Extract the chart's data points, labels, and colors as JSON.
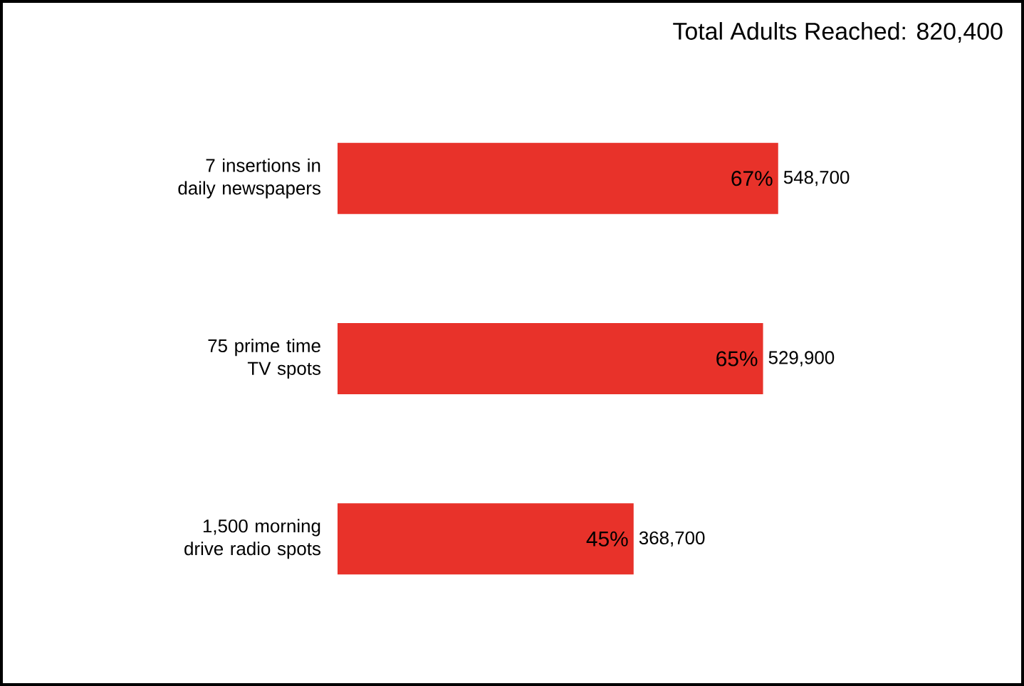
{
  "chart_data": {
    "type": "bar",
    "orientation": "horizontal",
    "title": "Total Adults Reached: 820,400",
    "categories": [
      "7 insertions in daily newspapers",
      "75 prime time TV spots",
      "1,500 morning drive radio spots"
    ],
    "values": [
      548700,
      529900,
      368700
    ],
    "value_labels": [
      "548,700",
      "529,900",
      "368,700"
    ],
    "color": "#e8322a",
    "annotations": [
      "67%",
      "65%",
      "45%"
    ]
  }
}
